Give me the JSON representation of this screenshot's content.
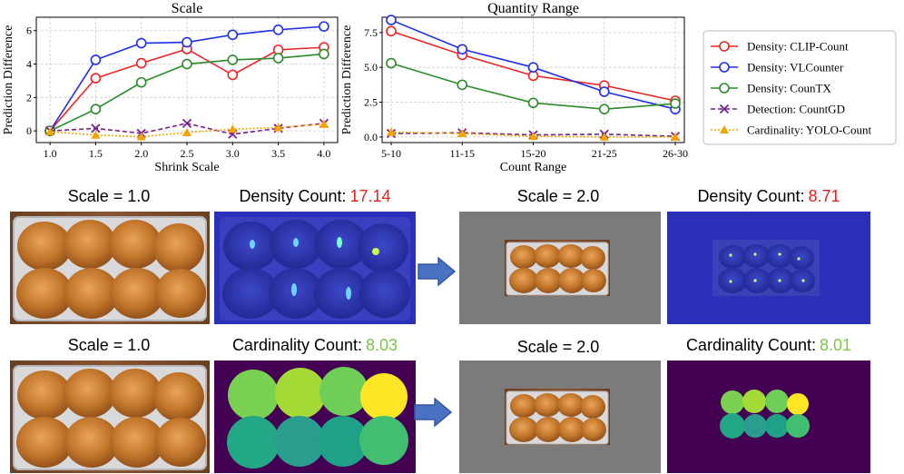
{
  "chart_data": [
    {
      "type": "line",
      "title": "Scale",
      "xlabel": "Shrink Scale",
      "ylabel": "Prediction Difference",
      "x": [
        1.0,
        1.5,
        2.0,
        2.5,
        3.0,
        3.5,
        4.0
      ],
      "x_tick_labels": [
        "1.0",
        "1.5",
        "2.0",
        "2.5",
        "3.0",
        "3.5",
        "4.0"
      ],
      "xlim": [
        0.85,
        4.15
      ],
      "ylim": [
        -0.7,
        6.8
      ],
      "y_ticks": [
        0,
        2,
        4,
        6
      ],
      "y_tick_labels": [
        "0",
        "2",
        "4",
        "6"
      ],
      "grid": true,
      "series": [
        {
          "name": "Density: CLIP-Count",
          "values": [
            0.0,
            3.15,
            4.05,
            4.9,
            3.35,
            4.85,
            5.0
          ]
        },
        {
          "name": "Density: VLCounter",
          "values": [
            0.0,
            4.25,
            5.25,
            5.3,
            5.75,
            6.05,
            6.25
          ]
        },
        {
          "name": "Density: CounTX",
          "values": [
            0.0,
            1.3,
            2.9,
            4.0,
            4.25,
            4.35,
            4.6
          ]
        },
        {
          "name": "Detection: CountGD",
          "values": [
            0.0,
            0.15,
            -0.15,
            0.45,
            -0.2,
            0.15,
            0.45
          ]
        },
        {
          "name": "Cardinality: YOLO-Count",
          "values": [
            -0.05,
            -0.25,
            -0.35,
            -0.1,
            0.1,
            0.2,
            0.4
          ]
        }
      ]
    },
    {
      "type": "line",
      "title": "Quantity Range",
      "xlabel": "Count Range",
      "ylabel": "Prediction Difference",
      "categories": [
        "5-10",
        "11-15",
        "15-20",
        "21-25",
        "26-30"
      ],
      "ylim": [
        -0.4,
        8.6
      ],
      "y_ticks": [
        0,
        2.5,
        5,
        7.5
      ],
      "y_tick_labels": [
        "0.0",
        "2.5",
        "5.0",
        "7.5"
      ],
      "grid": true,
      "series": [
        {
          "name": "Density: CLIP-Count",
          "values": [
            7.6,
            5.9,
            4.4,
            3.7,
            2.6
          ]
        },
        {
          "name": "Density: VLCounter",
          "values": [
            8.4,
            6.3,
            5.0,
            3.25,
            2.0
          ]
        },
        {
          "name": "Density: CounTX",
          "values": [
            5.3,
            3.75,
            2.45,
            2.0,
            2.4
          ]
        },
        {
          "name": "Detection: CountGD",
          "values": [
            0.25,
            0.3,
            0.15,
            0.2,
            0.05
          ]
        },
        {
          "name": "Cardinality: YOLO-Count",
          "values": [
            0.35,
            0.25,
            0.05,
            0.0,
            0.0
          ]
        }
      ]
    }
  ],
  "legend": {
    "position": "right",
    "entries": [
      {
        "label": "Density: CLIP-Count",
        "color": "#ee2222",
        "marker": "circle",
        "dash": "solid"
      },
      {
        "label": "Density: VLCounter",
        "color": "#1f2fe6",
        "marker": "circle",
        "dash": "solid"
      },
      {
        "label": "Density: CounTX",
        "color": "#2a8c2a",
        "marker": "circle",
        "dash": "solid"
      },
      {
        "label": "Detection: CountGD",
        "color": "#7a1f8f",
        "marker": "x",
        "dash": "dashed"
      },
      {
        "label": "Cardinality: YOLO-Count",
        "color": "#f5a300",
        "marker": "triangle",
        "dash": "dotted"
      }
    ]
  },
  "examples": {
    "density_row": {
      "orig_scale_label": "Scale = 1.0",
      "orig_count_label": "Density Count:",
      "orig_count_value": "17.14",
      "shrunk_scale_label": "Scale = 2.0",
      "shrunk_count_label": "Density Count:",
      "shrunk_count_value": "8.71",
      "value_color": "#ee1c1c"
    },
    "cardinality_row": {
      "orig_scale_label": "Scale = 1.0",
      "orig_count_label": "Cardinality Count:",
      "orig_count_value": "8.03",
      "shrunk_scale_label": "Scale = 2.0",
      "shrunk_count_label": "Cardinality Count:",
      "shrunk_count_value": "8.01",
      "value_color": "#7dc544"
    }
  }
}
